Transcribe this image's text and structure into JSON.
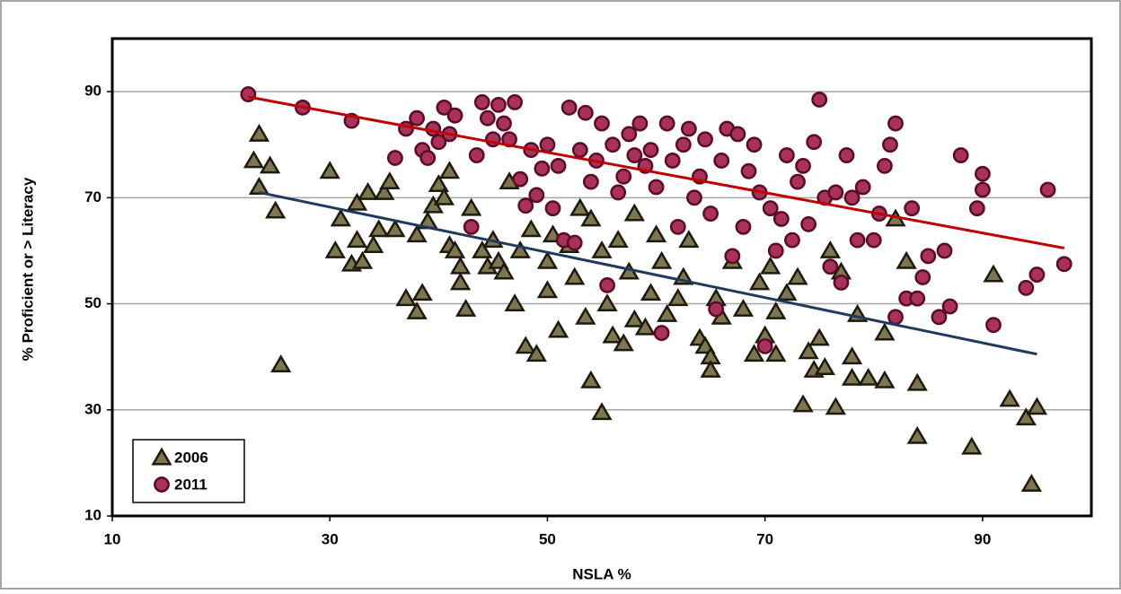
{
  "chart_data": {
    "type": "scatter",
    "xlabel": "NSLA %",
    "ylabel": "% Proficient or > Literacy",
    "xlim": [
      10,
      100
    ],
    "ylim": [
      10,
      100
    ],
    "xticks": [
      10,
      30,
      50,
      70,
      90
    ],
    "yticks": [
      10,
      30,
      50,
      70,
      90
    ],
    "grid": true,
    "legend": "lower left",
    "series": [
      {
        "name": "2006",
        "color": "#7e7651",
        "marker": "triangle",
        "x": [
          23.5,
          23,
          23.5,
          24.5,
          25,
          25.5,
          30,
          30.5,
          31,
          32,
          32.5,
          32.5,
          33,
          33.5,
          34,
          34.5,
          35,
          35.5,
          36,
          37,
          38,
          38,
          38.5,
          39,
          39.5,
          40,
          40.5,
          41,
          41,
          41.5,
          42,
          42,
          42.5,
          43,
          44,
          44.5,
          45,
          45.5,
          46,
          46.5,
          47,
          47.5,
          48,
          48.5,
          49,
          50,
          50,
          50.5,
          51,
          52,
          52.5,
          53,
          53.5,
          54,
          54,
          55,
          55,
          55.5,
          56,
          56.5,
          57,
          57.5,
          58,
          58,
          59,
          59.5,
          60,
          60.5,
          61,
          62,
          62.5,
          63,
          64,
          64.5,
          65,
          65,
          65.5,
          66,
          67,
          68,
          69,
          69.5,
          70,
          70.5,
          71,
          71,
          72,
          73,
          73.5,
          74,
          74.5,
          75,
          75.5,
          76,
          76.5,
          77,
          78,
          78,
          78.5,
          79.5,
          81,
          81,
          82,
          83,
          84,
          84,
          89,
          91,
          92.5,
          94,
          94.5,
          95
        ],
        "values": [
          82,
          77,
          72,
          76,
          67.5,
          38.5,
          75,
          60,
          66,
          57.5,
          69,
          62,
          58,
          71,
          61,
          64,
          71,
          73,
          64,
          51,
          63,
          48.5,
          52,
          65.5,
          68.5,
          72.5,
          70,
          75,
          61,
          60,
          57,
          54,
          49,
          68,
          60,
          57,
          62,
          58,
          56,
          73,
          50,
          60,
          42,
          64,
          40.5,
          52.5,
          58,
          63,
          45,
          61,
          55,
          68,
          47.5,
          35.5,
          66,
          29.5,
          60,
          50,
          44,
          62,
          42.5,
          56,
          47,
          67,
          45.5,
          52,
          63,
          58,
          48,
          51,
          55,
          62,
          43.5,
          42,
          40,
          37.5,
          51,
          47.5,
          58,
          49,
          40.5,
          54,
          44,
          57,
          40.5,
          48.5,
          52,
          55,
          31,
          41,
          37.5,
          43.5,
          38,
          60,
          30.5,
          56,
          40,
          36,
          48,
          36,
          44.5,
          35.5,
          66,
          58,
          35,
          25,
          23,
          55.5,
          32,
          28.5,
          16,
          30.5
        ]
      },
      {
        "name": "2011",
        "color": "#a8325a",
        "marker": "circle",
        "x": [
          22.5,
          27.5,
          32,
          36,
          37,
          38,
          38.5,
          39,
          39.5,
          40,
          40.5,
          41,
          41.5,
          43,
          43.5,
          44,
          44.5,
          45,
          45.5,
          46,
          46.5,
          47,
          47.5,
          48,
          48.5,
          49,
          49.5,
          50,
          50.5,
          51,
          51.5,
          52,
          52.5,
          53,
          53.5,
          54,
          54.5,
          55,
          55.5,
          56,
          56.5,
          57,
          57.5,
          58,
          58.5,
          59,
          59.5,
          60,
          60.5,
          61,
          61.5,
          62,
          62.5,
          63,
          63.5,
          64,
          64.5,
          65,
          65.5,
          66,
          66.5,
          67,
          67.5,
          68,
          68.5,
          69,
          69.5,
          70,
          70.5,
          71,
          71.5,
          72,
          72.5,
          73,
          73.5,
          74,
          74.5,
          75,
          75.5,
          76,
          76.5,
          77,
          77.5,
          78,
          78.5,
          79,
          80,
          80.5,
          81,
          81.5,
          82,
          82,
          83,
          83.5,
          84,
          84.5,
          85,
          86,
          86.5,
          87,
          88,
          89.5,
          90,
          90,
          91,
          94,
          95,
          96,
          97.5
        ],
        "values": [
          89.5,
          87,
          84.5,
          77.5,
          83,
          85,
          79,
          77.5,
          83,
          80.5,
          87,
          82,
          85.5,
          64.5,
          78,
          88,
          85,
          81,
          87.5,
          84,
          81,
          88,
          73.5,
          68.5,
          79,
          70.5,
          75.5,
          80,
          68,
          76,
          62,
          87,
          61.5,
          79,
          86,
          73,
          77,
          84,
          53.5,
          80,
          71,
          74,
          82,
          78,
          84,
          76,
          79,
          72,
          44.5,
          84,
          77,
          64.5,
          80,
          83,
          70,
          74,
          81,
          67,
          49,
          77,
          83,
          59,
          82,
          64.5,
          75,
          80,
          71,
          42,
          68,
          60,
          66,
          78,
          62,
          73,
          76,
          65,
          80.5,
          88.5,
          70,
          57,
          71,
          54,
          78,
          70,
          62,
          72,
          62,
          67,
          76,
          80,
          84,
          47.5,
          51,
          68,
          51,
          55,
          59,
          47.5,
          60,
          49.5,
          78,
          68,
          74.5,
          71.5,
          46,
          53,
          55.5,
          71.5,
          57.5
        ]
      }
    ],
    "trendlines": [
      {
        "color": "#c00000",
        "x": [
          22.5,
          97.5
        ],
        "values": [
          89,
          60.5
        ]
      },
      {
        "color": "#1f3a5f",
        "x": [
          23.5,
          95
        ],
        "values": [
          71,
          40.5
        ]
      }
    ]
  }
}
